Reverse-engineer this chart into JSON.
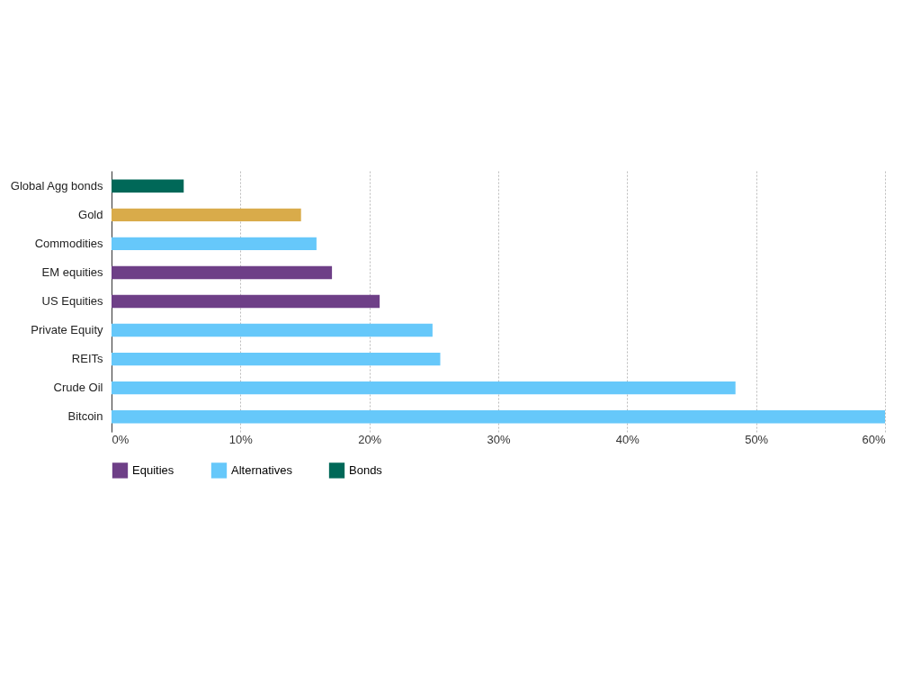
{
  "chart_data": {
    "type": "bar",
    "orientation": "horizontal",
    "categories": [
      "Global Agg bonds",
      "Gold",
      "Commodities",
      "EM equities",
      "US Equities",
      "Private Equity",
      "REITs",
      "Crude Oil",
      "Bitcoin"
    ],
    "series": [
      {
        "name": "Equities",
        "color": "#6e3f87",
        "values": [
          null,
          null,
          null,
          17.1,
          20.8,
          null,
          null,
          null,
          null
        ]
      },
      {
        "name": "Alternatives",
        "color": "#66c8fa",
        "values": [
          null,
          null,
          15.9,
          null,
          null,
          24.9,
          25.5,
          48.4,
          60
        ]
      },
      {
        "name": "Bonds",
        "color": "#006858",
        "values": [
          5.6,
          null,
          null,
          null,
          null,
          null,
          null,
          null,
          null
        ]
      },
      {
        "color": "#d9ab4a",
        "values": [
          null,
          14.7,
          null,
          null,
          null,
          null,
          null,
          null,
          null
        ]
      }
    ],
    "xlim": [
      0,
      60
    ],
    "xticks": [
      {
        "value": 0,
        "label": "0%"
      },
      {
        "value": 10,
        "label": "10%"
      },
      {
        "value": 20,
        "label": "20%"
      },
      {
        "value": 30,
        "label": "30%"
      },
      {
        "value": 40,
        "label": "40%"
      },
      {
        "value": 50,
        "label": "50%"
      },
      {
        "value": 60,
        "label": "60%"
      }
    ],
    "grid": "x",
    "legend": "bottom"
  }
}
